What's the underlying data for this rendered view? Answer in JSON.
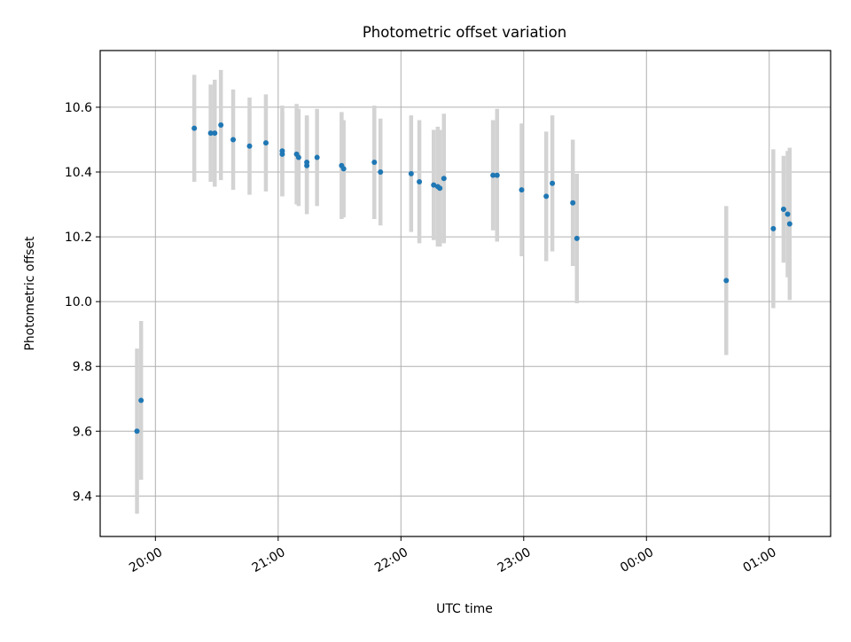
{
  "chart_data": {
    "type": "scatter",
    "title": "Photometric offset variation",
    "xlabel": "UTC time",
    "ylabel": "Photometric offset",
    "x_axis_type": "time",
    "xlim": [
      "19:33",
      "01:30"
    ],
    "ylim": [
      9.275,
      10.775
    ],
    "xticks": [
      {
        "label": "20:00",
        "value": "20:00"
      },
      {
        "label": "21:00",
        "value": "21:00"
      },
      {
        "label": "22:00",
        "value": "22:00"
      },
      {
        "label": "23:00",
        "value": "23:00"
      },
      {
        "label": "00:00",
        "value": "00:00"
      },
      {
        "label": "01:00",
        "value": "01:00"
      }
    ],
    "yticks": [
      9.4,
      9.6,
      9.8,
      10.0,
      10.2,
      10.4,
      10.6
    ],
    "grid": true,
    "colors": {
      "points": "#1f77b4",
      "error_bars": "#d3d3d3",
      "grid": "#b0b0b0"
    },
    "series": [
      {
        "points": [
          {
            "x": "19:51",
            "y": 9.6,
            "yerr": 0.255
          },
          {
            "x": "19:53",
            "y": 9.695,
            "yerr": 0.245
          },
          {
            "x": "20:19",
            "y": 10.535,
            "yerr": 0.165
          },
          {
            "x": "20:27",
            "y": 10.52,
            "yerr": 0.15
          },
          {
            "x": "20:29",
            "y": 10.52,
            "yerr": 0.165
          },
          {
            "x": "20:32",
            "y": 10.545,
            "yerr": 0.17
          },
          {
            "x": "20:38",
            "y": 10.5,
            "yerr": 0.155
          },
          {
            "x": "20:46",
            "y": 10.48,
            "yerr": 0.15
          },
          {
            "x": "20:54",
            "y": 10.49,
            "yerr": 0.15
          },
          {
            "x": "21:02",
            "y": 10.465,
            "yerr": 0.14
          },
          {
            "x": "21:02",
            "y": 10.455,
            "yerr": 0.13
          },
          {
            "x": "21:09",
            "y": 10.455,
            "yerr": 0.155
          },
          {
            "x": "21:10",
            "y": 10.445,
            "yerr": 0.15
          },
          {
            "x": "21:14",
            "y": 10.43,
            "yerr": 0.145
          },
          {
            "x": "21:14",
            "y": 10.42,
            "yerr": 0.15
          },
          {
            "x": "21:19",
            "y": 10.445,
            "yerr": 0.15
          },
          {
            "x": "21:31",
            "y": 10.42,
            "yerr": 0.165
          },
          {
            "x": "21:32",
            "y": 10.41,
            "yerr": 0.15
          },
          {
            "x": "21:47",
            "y": 10.43,
            "yerr": 0.175
          },
          {
            "x": "21:50",
            "y": 10.4,
            "yerr": 0.165
          },
          {
            "x": "22:05",
            "y": 10.395,
            "yerr": 0.18
          },
          {
            "x": "22:09",
            "y": 10.37,
            "yerr": 0.19
          },
          {
            "x": "22:16",
            "y": 10.36,
            "yerr": 0.17
          },
          {
            "x": "22:18",
            "y": 10.355,
            "yerr": 0.185
          },
          {
            "x": "22:19",
            "y": 10.35,
            "yerr": 0.18
          },
          {
            "x": "22:21",
            "y": 10.38,
            "yerr": 0.2
          },
          {
            "x": "22:45",
            "y": 10.39,
            "yerr": 0.17
          },
          {
            "x": "22:47",
            "y": 10.39,
            "yerr": 0.205
          },
          {
            "x": "22:59",
            "y": 10.345,
            "yerr": 0.205
          },
          {
            "x": "23:11",
            "y": 10.325,
            "yerr": 0.2
          },
          {
            "x": "23:14",
            "y": 10.365,
            "yerr": 0.21
          },
          {
            "x": "23:24",
            "y": 10.305,
            "yerr": 0.195
          },
          {
            "x": "23:26",
            "y": 10.195,
            "yerr": 0.2
          },
          {
            "x": "00:39",
            "y": 10.065,
            "yerr": 0.23
          },
          {
            "x": "01:02",
            "y": 10.225,
            "yerr": 0.245
          },
          {
            "x": "01:07",
            "y": 10.285,
            "yerr": 0.165
          },
          {
            "x": "01:09",
            "y": 10.27,
            "yerr": 0.195
          },
          {
            "x": "01:10",
            "y": 10.24,
            "yerr": 0.235
          }
        ]
      }
    ]
  }
}
